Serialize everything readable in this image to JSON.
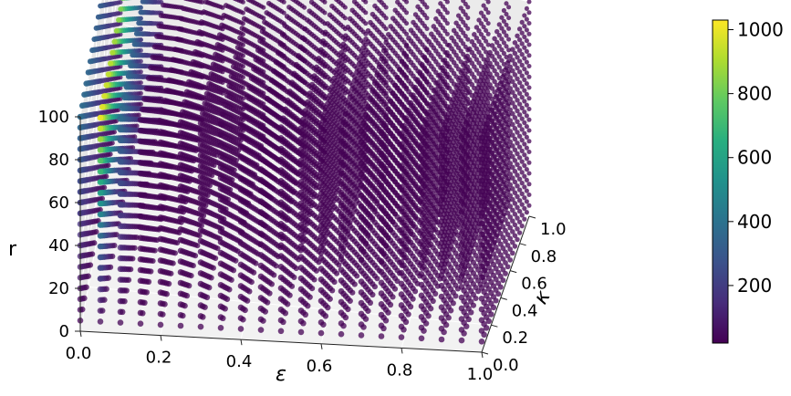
{
  "chart_data": {
    "type": "scatter",
    "projection": "3d",
    "title": "",
    "xlabel": "ε",
    "ylabel": "κ",
    "zlabel": "r",
    "xlim": [
      0.0,
      1.0
    ],
    "ylim": [
      0.0,
      1.0
    ],
    "zlim": [
      0,
      100
    ],
    "x_ticks": [
      "0.0",
      "0.2",
      "0.4",
      "0.6",
      "0.8",
      "1.0"
    ],
    "y_ticks": [
      "0.0",
      "0.2",
      "0.4",
      "0.6",
      "0.8",
      "1.0"
    ],
    "z_ticks": [
      "0",
      "20",
      "40",
      "60",
      "80",
      "100"
    ],
    "grid": {
      "epsilon": [
        0.0,
        0.05,
        0.1,
        0.15,
        0.2,
        0.25,
        0.3,
        0.35,
        0.4,
        0.45,
        0.5,
        0.55,
        0.6,
        0.65,
        0.7,
        0.75,
        0.8,
        0.85,
        0.9,
        0.95,
        1.0
      ],
      "kappa": [
        0.0,
        0.05,
        0.1,
        0.15,
        0.2,
        0.25,
        0.3,
        0.35,
        0.4,
        0.45,
        0.5,
        0.55,
        0.6,
        0.65,
        0.7,
        0.75,
        0.8,
        0.85,
        0.9,
        0.95,
        1.0
      ],
      "r": [
        5,
        10,
        15,
        20,
        25,
        30,
        35,
        40,
        45,
        50,
        55,
        60,
        65,
        70,
        75,
        80,
        85,
        90,
        95,
        100
      ]
    },
    "color_value": {
      "description": "peaks near epsilon ≈ 0.05 for larger r; ≈20 elsewhere",
      "baseline": 20,
      "peak": 1000,
      "peak_epsilon": 0.05
    },
    "colormap": "viridis",
    "colorbar": {
      "ticks": [
        "200",
        "400",
        "600",
        "800",
        "1000"
      ],
      "min": 20,
      "max": 1030
    },
    "grid_on": true
  }
}
